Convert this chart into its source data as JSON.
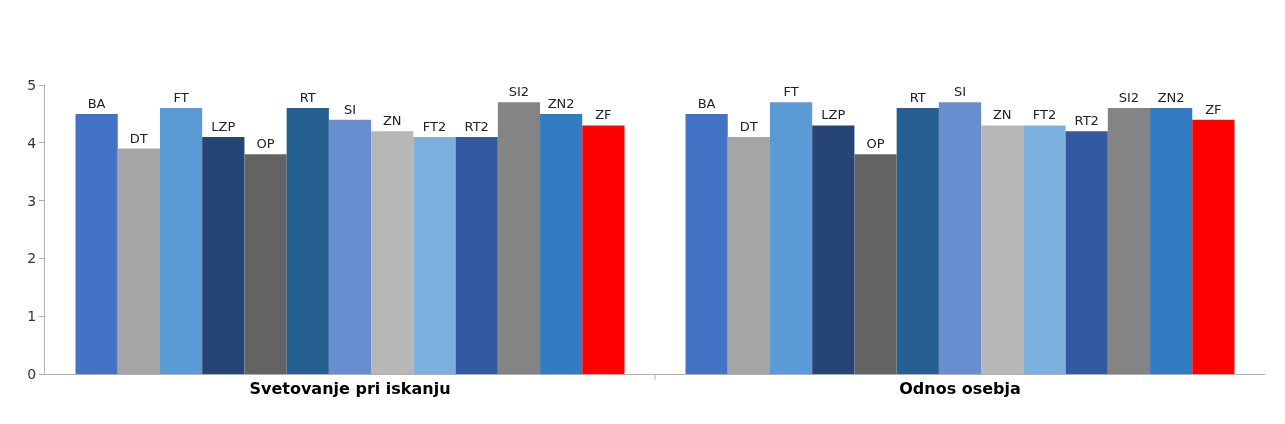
{
  "chart_data": {
    "type": "bar",
    "categories": [
      "Svetovanje pri iskanju",
      "Odnos osebja"
    ],
    "series": [
      {
        "name": "BA",
        "color": "#4472c4",
        "values": [
          4.5,
          4.5
        ]
      },
      {
        "name": "DT",
        "color": "#a5a5a5",
        "values": [
          3.9,
          4.1
        ]
      },
      {
        "name": "FT",
        "color": "#5b9bd5",
        "values": [
          4.6,
          4.7
        ]
      },
      {
        "name": "LZP",
        "color": "#264478",
        "values": [
          4.1,
          4.3
        ]
      },
      {
        "name": "OP",
        "color": "#636363",
        "values": [
          3.8,
          3.8
        ]
      },
      {
        "name": "RT",
        "color": "#255e91",
        "values": [
          4.6,
          4.6
        ]
      },
      {
        "name": "SI",
        "color": "#698ed0",
        "values": [
          4.4,
          4.7
        ]
      },
      {
        "name": "ZN",
        "color": "#b7b7b7",
        "values": [
          4.2,
          4.3
        ]
      },
      {
        "name": "FT2",
        "color": "#7cafdd",
        "values": [
          4.1,
          4.3
        ]
      },
      {
        "name": "RT2",
        "color": "#335aa1",
        "values": [
          4.1,
          4.2
        ]
      },
      {
        "name": "SI2",
        "color": "#848484",
        "values": [
          4.7,
          4.6
        ]
      },
      {
        "name": "ZN2",
        "color": "#327dc2",
        "values": [
          4.5,
          4.6
        ]
      },
      {
        "name": "ZF",
        "color": "#ff0000",
        "values": [
          4.3,
          4.4
        ]
      }
    ],
    "ylim": [
      0,
      5
    ],
    "yticks": [
      0,
      1,
      2,
      3,
      4,
      5
    ],
    "legend": false
  }
}
